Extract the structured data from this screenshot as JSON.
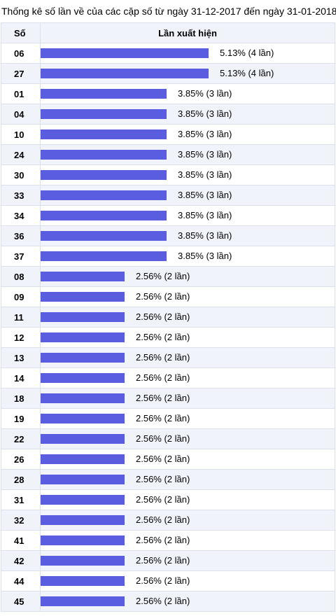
{
  "caption": "Thống kê số lần về của các cặp số từ ngày 31-12-2017 đến ngày 31-01-2018",
  "header": {
    "col_number": "Số",
    "col_frequency": "Lần xuất hiện"
  },
  "colors": {
    "bar": "#5a5de0",
    "row_alt": "#f0f3fa",
    "border": "#dbe0ea"
  },
  "chart_data": {
    "type": "bar",
    "orientation": "horizontal",
    "title": "Thống kê số lần về của các cặp số từ ngày 31-12-2017 đến ngày 31-01-2018",
    "rows": [
      {
        "number": "06",
        "percent": 5.13,
        "count": 4,
        "label": "5.13% (4 lần)"
      },
      {
        "number": "27",
        "percent": 5.13,
        "count": 4,
        "label": "5.13% (4 lần)"
      },
      {
        "number": "01",
        "percent": 3.85,
        "count": 3,
        "label": "3.85% (3 lần)"
      },
      {
        "number": "04",
        "percent": 3.85,
        "count": 3,
        "label": "3.85% (3 lần)"
      },
      {
        "number": "10",
        "percent": 3.85,
        "count": 3,
        "label": "3.85% (3 lần)"
      },
      {
        "number": "24",
        "percent": 3.85,
        "count": 3,
        "label": "3.85% (3 lần)"
      },
      {
        "number": "30",
        "percent": 3.85,
        "count": 3,
        "label": "3.85% (3 lần)"
      },
      {
        "number": "33",
        "percent": 3.85,
        "count": 3,
        "label": "3.85% (3 lần)"
      },
      {
        "number": "34",
        "percent": 3.85,
        "count": 3,
        "label": "3.85% (3 lần)"
      },
      {
        "number": "36",
        "percent": 3.85,
        "count": 3,
        "label": "3.85% (3 lần)"
      },
      {
        "number": "37",
        "percent": 3.85,
        "count": 3,
        "label": "3.85% (3 lần)"
      },
      {
        "number": "08",
        "percent": 2.56,
        "count": 2,
        "label": "2.56% (2 lần)"
      },
      {
        "number": "09",
        "percent": 2.56,
        "count": 2,
        "label": "2.56% (2 lần)"
      },
      {
        "number": "11",
        "percent": 2.56,
        "count": 2,
        "label": "2.56% (2 lần)"
      },
      {
        "number": "12",
        "percent": 2.56,
        "count": 2,
        "label": "2.56% (2 lần)"
      },
      {
        "number": "13",
        "percent": 2.56,
        "count": 2,
        "label": "2.56% (2 lần)"
      },
      {
        "number": "14",
        "percent": 2.56,
        "count": 2,
        "label": "2.56% (2 lần)"
      },
      {
        "number": "18",
        "percent": 2.56,
        "count": 2,
        "label": "2.56% (2 lần)"
      },
      {
        "number": "19",
        "percent": 2.56,
        "count": 2,
        "label": "2.56% (2 lần)"
      },
      {
        "number": "22",
        "percent": 2.56,
        "count": 2,
        "label": "2.56% (2 lần)"
      },
      {
        "number": "26",
        "percent": 2.56,
        "count": 2,
        "label": "2.56% (2 lần)"
      },
      {
        "number": "28",
        "percent": 2.56,
        "count": 2,
        "label": "2.56% (2 lần)"
      },
      {
        "number": "31",
        "percent": 2.56,
        "count": 2,
        "label": "2.56% (2 lần)"
      },
      {
        "number": "32",
        "percent": 2.56,
        "count": 2,
        "label": "2.56% (2 lần)"
      },
      {
        "number": "41",
        "percent": 2.56,
        "count": 2,
        "label": "2.56% (2 lần)"
      },
      {
        "number": "42",
        "percent": 2.56,
        "count": 2,
        "label": "2.56% (2 lần)"
      },
      {
        "number": "44",
        "percent": 2.56,
        "count": 2,
        "label": "2.56% (2 lần)"
      },
      {
        "number": "45",
        "percent": 2.56,
        "count": 2,
        "label": "2.56% (2 lần)"
      }
    ]
  }
}
